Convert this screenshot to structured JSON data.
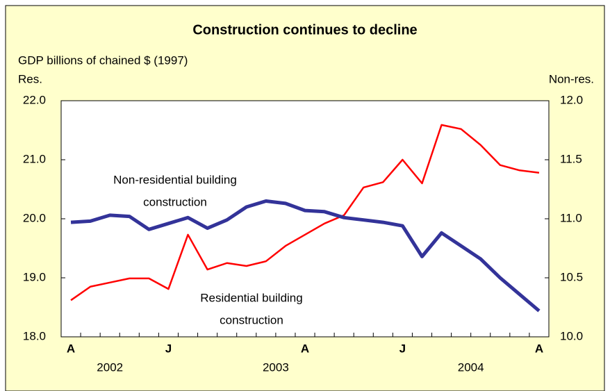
{
  "chart_data": {
    "type": "line",
    "title": "Construction continues to decline",
    "ylabel": "GDP billions of chained $ (1997)",
    "y_axis_title": "Res.",
    "y2_axis_title": "Non-res.",
    "categories": [
      "A",
      null,
      null,
      null,
      null,
      "J",
      null,
      null,
      null,
      null,
      null,
      null,
      "A",
      null,
      null,
      null,
      null,
      "J",
      null,
      null,
      null,
      null,
      null,
      null,
      "A"
    ],
    "x_groups": [
      {
        "label": "2002",
        "start": 0,
        "end": 4
      },
      {
        "label": "2003",
        "start": 5,
        "end": 16
      },
      {
        "label": "2004",
        "start": 17,
        "end": 24
      }
    ],
    "ylim": [
      18,
      22
    ],
    "yticks": [
      {
        "value": 18,
        "label": "18.0"
      },
      {
        "value": 19,
        "label": "19.0"
      },
      {
        "value": 20,
        "label": "20.0"
      },
      {
        "value": 21,
        "label": "21.0"
      },
      {
        "value": 22,
        "label": "22.0"
      }
    ],
    "y2lim": [
      10,
      12
    ],
    "y2ticks": [
      {
        "value": 10,
        "label": "10.0"
      },
      {
        "value": 10.5,
        "label": "10.5"
      },
      {
        "value": 11,
        "label": "11.0"
      },
      {
        "value": 11.5,
        "label": "11.5"
      },
      {
        "value": 12,
        "label": "12.0"
      }
    ],
    "grid": false,
    "series": [
      {
        "name": "Residential building construction",
        "color": "#ff0000",
        "axis": "y",
        "values": [
          18.62,
          18.85,
          18.92,
          18.99,
          18.99,
          18.81,
          19.73,
          19.14,
          19.25,
          19.2,
          19.28,
          19.54,
          19.73,
          19.92,
          20.06,
          20.53,
          20.62,
          21.0,
          20.6,
          21.59,
          21.52,
          21.25,
          20.91,
          20.82,
          20.78
        ]
      },
      {
        "name": "Non-residential building construction",
        "color": "#333399",
        "axis": "y2",
        "values": [
          10.97,
          10.98,
          11.03,
          11.02,
          10.91,
          10.96,
          11.01,
          10.92,
          10.99,
          11.1,
          11.15,
          11.13,
          11.07,
          11.06,
          11.01,
          10.99,
          10.97,
          10.94,
          10.68,
          10.88,
          10.77,
          10.66,
          10.5,
          10.36,
          10.22
        ]
      }
    ],
    "annotations": [
      {
        "lines": [
          "Non-residential building",
          "construction"
        ]
      },
      {
        "lines": [
          "Residential building",
          "construction"
        ]
      }
    ]
  }
}
